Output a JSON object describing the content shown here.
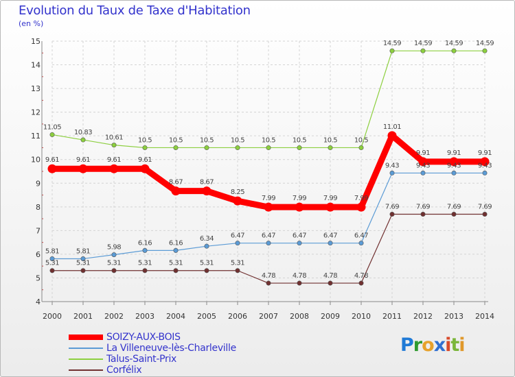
{
  "title": "Evolution du Taux de Taxe d'Habitation",
  "unit_label": "(en %)",
  "logo": {
    "text": "Proxiti"
  },
  "colors": {
    "title": "#3333cc",
    "soizy": "#ff0000",
    "villeneuve": "#5b9bd5",
    "talus": "#8ccf3e",
    "corfelix": "#703030"
  },
  "chart_data": {
    "type": "line",
    "title": "Evolution du Taux de Taxe d'Habitation",
    "ylabel": "(en %)",
    "xlabel": "",
    "ylim": [
      4,
      15
    ],
    "yticks": [
      4,
      5,
      6,
      7,
      8,
      9,
      10,
      11,
      12,
      13,
      14,
      15
    ],
    "x": [
      2000,
      2001,
      2002,
      2003,
      2004,
      2005,
      2006,
      2007,
      2008,
      2009,
      2010,
      2011,
      2012,
      2013,
      2014
    ],
    "legend_position": "bottom-left",
    "series": [
      {
        "name": "SOIZY-AUX-BOIS",
        "key": "soizy",
        "color": "#ff0000",
        "values": [
          9.61,
          9.61,
          9.61,
          9.61,
          8.67,
          8.67,
          8.25,
          7.99,
          7.99,
          7.99,
          7.99,
          11.01,
          9.91,
          9.91,
          9.91
        ]
      },
      {
        "name": "La Villeneuve-lès-Charleville",
        "key": "villeneuve",
        "color": "#5b9bd5",
        "values": [
          5.81,
          5.81,
          5.98,
          6.16,
          6.16,
          6.34,
          6.47,
          6.47,
          6.47,
          6.47,
          6.47,
          9.43,
          9.43,
          9.43,
          9.43
        ]
      },
      {
        "name": "Talus-Saint-Prix",
        "key": "talus",
        "color": "#8ccf3e",
        "values": [
          11.05,
          10.83,
          10.61,
          10.5,
          10.5,
          10.5,
          10.5,
          10.5,
          10.5,
          10.5,
          10.5,
          14.59,
          14.59,
          14.59,
          14.59
        ]
      },
      {
        "name": "Corfélix",
        "key": "corfelix",
        "color": "#703030",
        "values": [
          5.31,
          5.31,
          5.31,
          5.31,
          5.31,
          5.31,
          5.31,
          4.78,
          4.78,
          4.78,
          4.78,
          7.69,
          7.69,
          7.69,
          7.69
        ]
      }
    ]
  }
}
